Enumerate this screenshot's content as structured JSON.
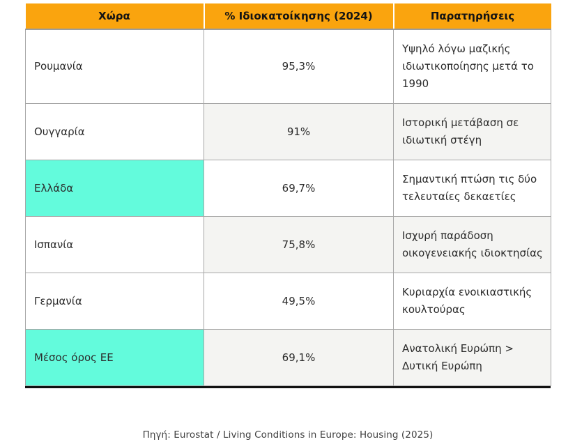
{
  "chart_data": {
    "type": "table",
    "title": "",
    "columns": [
      {
        "label": "Χώρα"
      },
      {
        "label": "% Ιδιοκατοίκησης (2024)"
      },
      {
        "label": "Παρατηρήσεις"
      }
    ],
    "rows": [
      {
        "country": "Ρουμανία",
        "percent": "95,3%",
        "percent_value": 95.3,
        "notes": "Υψηλό λόγω μαζικής ιδιωτικοποίησης μετά το 1990",
        "highlight": false
      },
      {
        "country": "Ουγγαρία",
        "percent": "91%",
        "percent_value": 91.0,
        "notes": "Ιστορική μετάβαση σε ιδιωτική στέγη",
        "highlight": false
      },
      {
        "country": "Ελλάδα",
        "percent": "69,7%",
        "percent_value": 69.7,
        "notes": "Σημαντική πτώση τις δύο τελευταίες δεκαετίες",
        "highlight": true
      },
      {
        "country": "Ισπανία",
        "percent": "75,8%",
        "percent_value": 75.8,
        "notes": "Ισχυρή παράδοση οικογενειακής ιδιοκτησίας",
        "highlight": false
      },
      {
        "country": "Γερμανία",
        "percent": "49,5%",
        "percent_value": 49.5,
        "notes": "Κυριαρχία ενοικιαστικής κουλτούρας",
        "highlight": false
      },
      {
        "country": "Μέσος όρος ΕΕ",
        "percent": "69,1%",
        "percent_value": 69.1,
        "notes": "Ανατολική Ευρώπη > Δυτική Ευρώπη",
        "highlight": true
      }
    ],
    "highlighted_rows": [
      "Ελλάδα",
      "Μέσος όρος ΕΕ"
    ],
    "source": "Πηγή: Eurostat / Living Conditions in Europe: Housing (2025)"
  },
  "colors": {
    "header_bg": "#FAA40E",
    "highlight_bg": "#63FBDC",
    "band_bg": "#F4F4F2",
    "border": "#A6A6A6",
    "bottom_rule": "#111111"
  }
}
